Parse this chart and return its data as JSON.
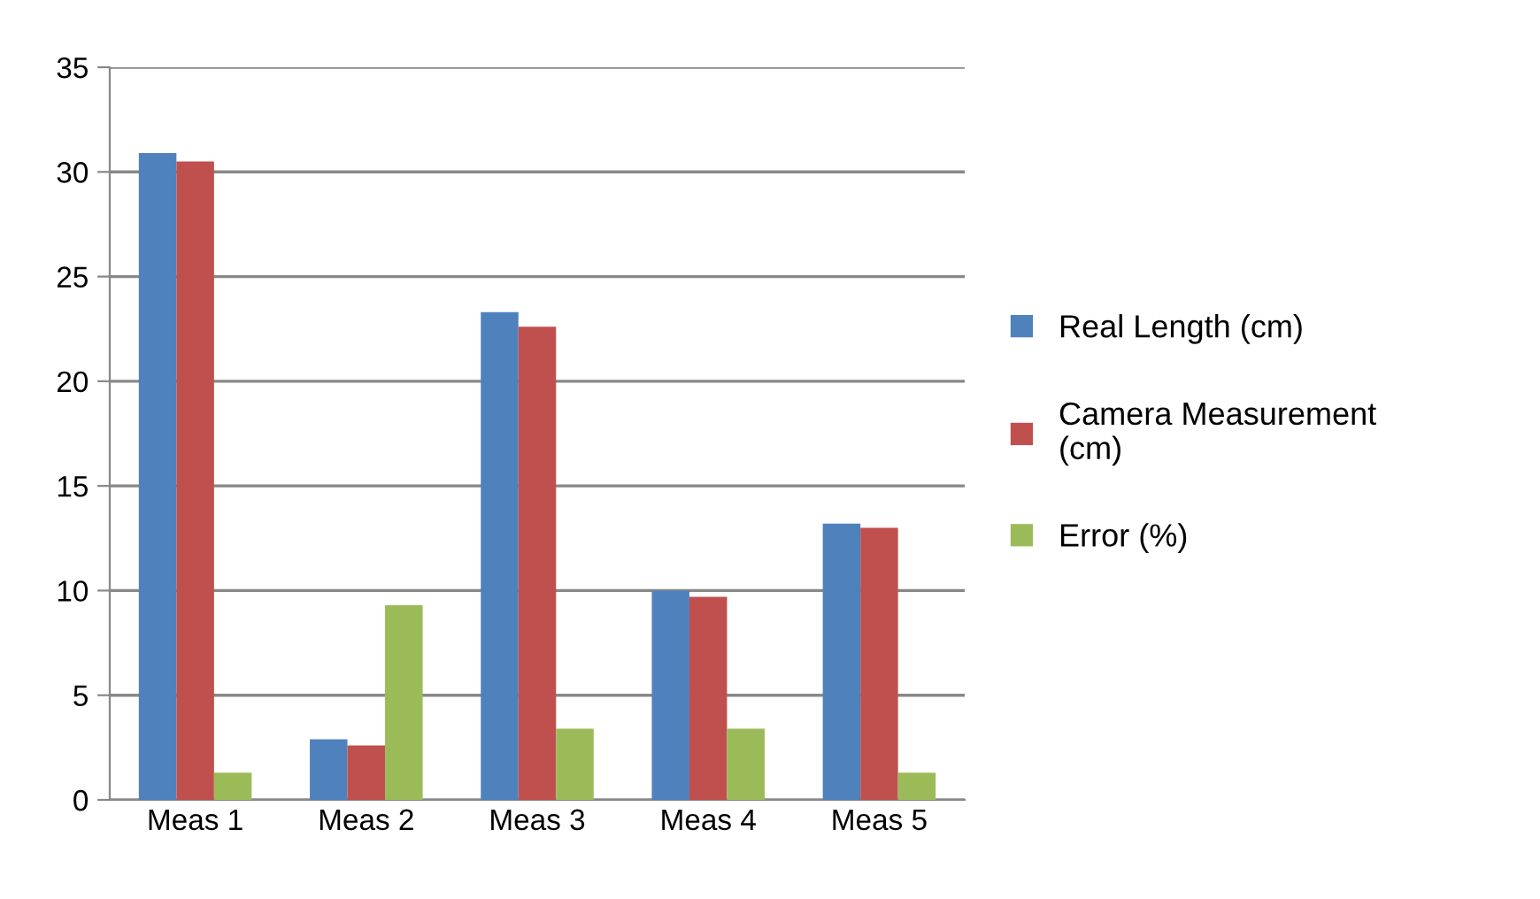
{
  "chart_data": {
    "type": "bar",
    "categories": [
      "Meas 1",
      "Meas 2",
      "Meas 3",
      "Meas 4",
      "Meas 5"
    ],
    "series": [
      {
        "name": "Real Length (cm)",
        "color": "#4f81bd",
        "values": [
          30.9,
          2.9,
          23.3,
          10.0,
          13.2
        ]
      },
      {
        "name": "Camera Measurement (cm)",
        "color": "#c0504d",
        "values": [
          30.5,
          2.6,
          22.6,
          9.7,
          13.0
        ]
      },
      {
        "name": "Error (%)",
        "color": "#9bbb59",
        "values": [
          1.3,
          9.3,
          3.4,
          3.4,
          1.3
        ]
      }
    ],
    "ylim": [
      0,
      35
    ],
    "yticks": [
      0,
      5,
      10,
      15,
      20,
      25,
      30,
      35
    ],
    "grid": "y",
    "legend": "right"
  }
}
